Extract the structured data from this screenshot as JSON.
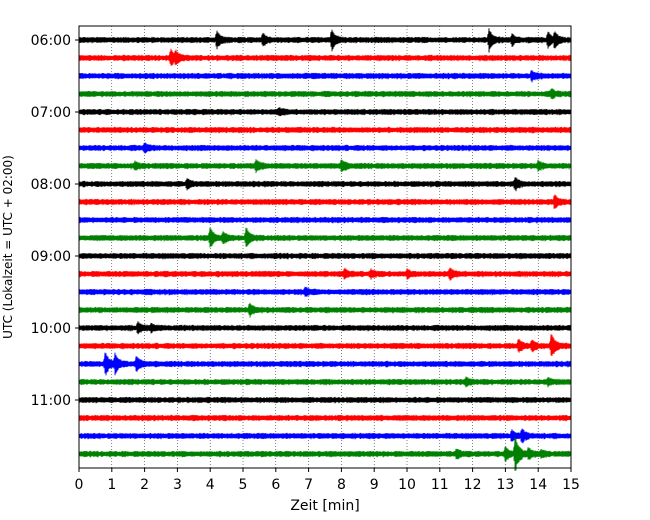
{
  "chart_data": {
    "type": "line",
    "title": "",
    "xlabel": "Zeit  [min]",
    "ylabel": "UTC (Lokalzeit = UTC + 02:00)",
    "xlim": [
      0,
      15
    ],
    "x_ticks": [
      0,
      1,
      2,
      3,
      4,
      5,
      6,
      7,
      8,
      9,
      10,
      11,
      12,
      13,
      14,
      15
    ],
    "x_tick_labels": [
      "0",
      "1",
      "2",
      "3",
      "4",
      "5",
      "6",
      "7",
      "8",
      "9",
      "10",
      "11",
      "12",
      "13",
      "14",
      "15"
    ],
    "y_tick_labels": [
      "06:00",
      "07:00",
      "08:00",
      "09:00",
      "10:00",
      "11:00"
    ],
    "y_tick_rows": [
      0,
      4,
      8,
      12,
      16,
      20
    ],
    "grid": "vertical dotted",
    "trace_colors": [
      "#000000",
      "#ff0000",
      "#0000ff",
      "#008000"
    ],
    "traces": [
      {
        "start": "06:00",
        "color": "#000000",
        "events": [
          [
            4.2,
            0.8
          ],
          [
            5.6,
            0.6
          ],
          [
            7.7,
            1.0
          ],
          [
            12.5,
            1.0
          ],
          [
            13.2,
            0.5
          ],
          [
            14.3,
            0.7
          ],
          [
            14.5,
            0.7
          ]
        ]
      },
      {
        "start": "06:15",
        "color": "#ff0000",
        "events": [
          [
            2.8,
            0.8
          ],
          [
            2.95,
            0.5
          ]
        ]
      },
      {
        "start": "06:30",
        "color": "#0000ff",
        "events": [
          [
            13.8,
            0.4
          ]
        ]
      },
      {
        "start": "06:45",
        "color": "#008000",
        "events": [
          [
            14.4,
            0.4
          ]
        ]
      },
      {
        "start": "07:00",
        "color": "#000000",
        "events": [
          [
            6.1,
            0.3
          ]
        ]
      },
      {
        "start": "07:15",
        "color": "#ff0000",
        "events": []
      },
      {
        "start": "07:30",
        "color": "#0000ff",
        "events": [
          [
            2.0,
            0.4
          ]
        ]
      },
      {
        "start": "07:45",
        "color": "#008000",
        "events": [
          [
            1.7,
            0.3
          ],
          [
            5.4,
            0.5
          ],
          [
            8.0,
            0.5
          ],
          [
            14.0,
            0.4
          ]
        ]
      },
      {
        "start": "08:00",
        "color": "#000000",
        "events": [
          [
            3.3,
            0.4
          ],
          [
            13.3,
            0.5
          ]
        ]
      },
      {
        "start": "08:15",
        "color": "#ff0000",
        "events": [
          [
            14.5,
            0.6
          ]
        ]
      },
      {
        "start": "08:30",
        "color": "#0000ff",
        "events": []
      },
      {
        "start": "08:45",
        "color": "#008000",
        "events": [
          [
            4.0,
            1.0
          ],
          [
            4.4,
            0.5
          ],
          [
            5.1,
            1.0
          ]
        ]
      },
      {
        "start": "09:00",
        "color": "#000000",
        "events": []
      },
      {
        "start": "09:15",
        "color": "#ff0000",
        "events": [
          [
            8.1,
            0.4
          ],
          [
            8.9,
            0.3
          ],
          [
            10.0,
            0.3
          ],
          [
            11.3,
            0.5
          ]
        ]
      },
      {
        "start": "09:30",
        "color": "#0000ff",
        "events": [
          [
            6.9,
            0.4
          ]
        ]
      },
      {
        "start": "09:45",
        "color": "#008000",
        "events": [
          [
            5.2,
            0.6
          ]
        ]
      },
      {
        "start": "10:00",
        "color": "#000000",
        "events": [
          [
            1.8,
            0.5
          ],
          [
            2.2,
            0.3
          ]
        ]
      },
      {
        "start": "10:15",
        "color": "#ff0000",
        "events": [
          [
            13.4,
            0.6
          ],
          [
            13.8,
            0.5
          ],
          [
            14.4,
            1.2
          ]
        ]
      },
      {
        "start": "10:30",
        "color": "#0000ff",
        "events": [
          [
            0.8,
            1.1
          ],
          [
            1.1,
            0.9
          ],
          [
            1.75,
            0.7
          ]
        ]
      },
      {
        "start": "10:45",
        "color": "#008000",
        "events": [
          [
            11.8,
            0.3
          ],
          [
            14.3,
            0.3
          ]
        ]
      },
      {
        "start": "11:00",
        "color": "#000000",
        "events": []
      },
      {
        "start": "11:15",
        "color": "#ff0000",
        "events": []
      },
      {
        "start": "11:30",
        "color": "#0000ff",
        "events": [
          [
            13.2,
            0.5
          ],
          [
            13.5,
            0.6
          ]
        ]
      },
      {
        "start": "11:45",
        "color": "#008000",
        "events": [
          [
            11.5,
            0.4
          ],
          [
            13.0,
            0.6
          ],
          [
            13.3,
            1.8
          ],
          [
            13.7,
            0.5
          ],
          [
            14.1,
            0.3
          ]
        ]
      }
    ]
  }
}
